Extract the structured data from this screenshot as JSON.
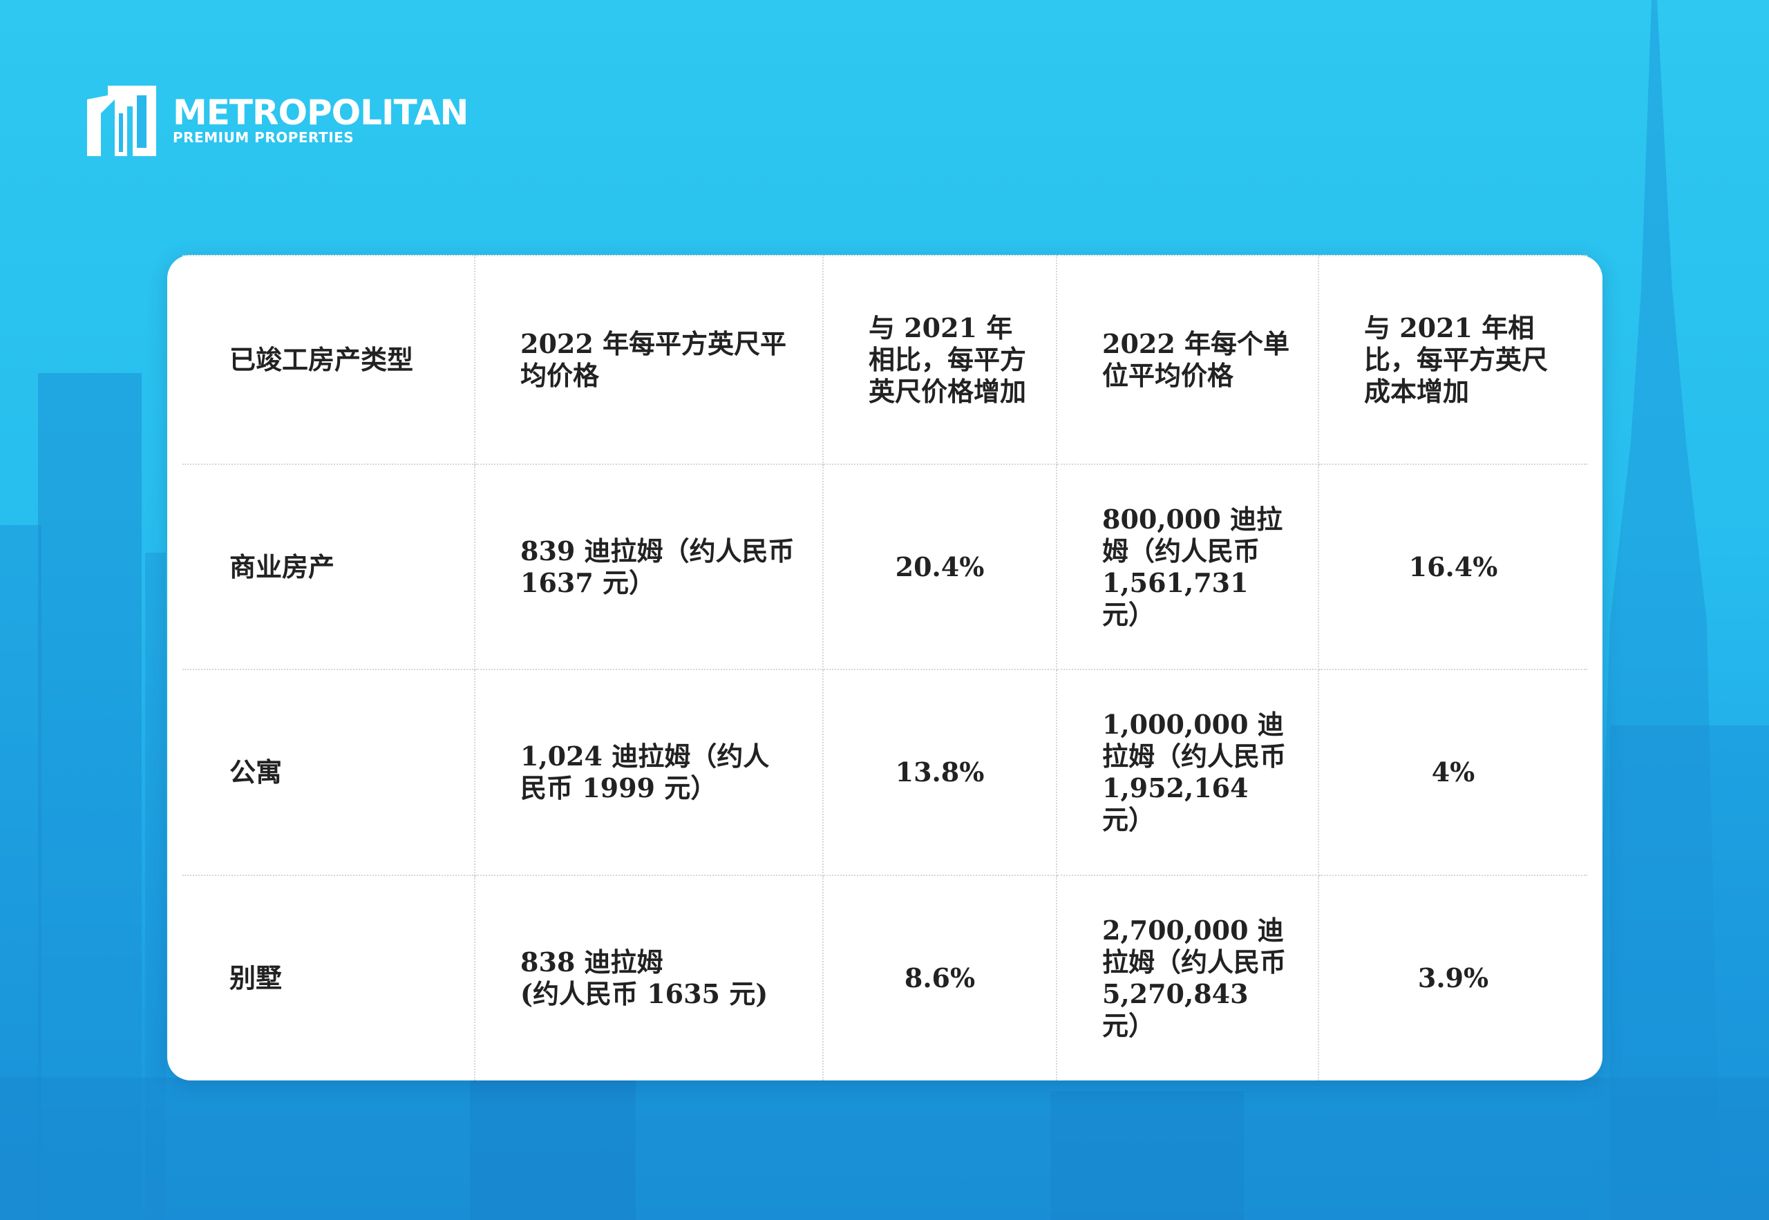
{
  "header": {
    "brand": "METROPOLITAN",
    "tagline": "PREMIUM PROPERTIES"
  },
  "table": {
    "columns": [
      "已竣工房产类型",
      "2022 年每平方英尺平均价格",
      "与 2021 年相比，每平方英尺价格增加",
      "2022 年每个单位平均价格",
      "与 2021 年相比，每平方英尺成本增加"
    ],
    "rows": [
      [
        "商业房产",
        "839 迪拉姆（约人民币 1637 元）",
        "20.4%",
        "800,000 迪拉姆（约人民币 1,561,731 元）",
        "16.4%"
      ],
      [
        "公寓",
        "1,024 迪拉姆（约人民币 1999 元）",
        "13.8%",
        "1,000,000 迪拉姆（约人民币 1,952,164 元）",
        "4%"
      ],
      [
        "别墅",
        "838 迪拉姆\n(约人民币 1635 元)",
        "8.6%",
        "2,700,000 迪拉姆（约人民币 5,270,843 元）",
        "3.9%"
      ]
    ]
  }
}
